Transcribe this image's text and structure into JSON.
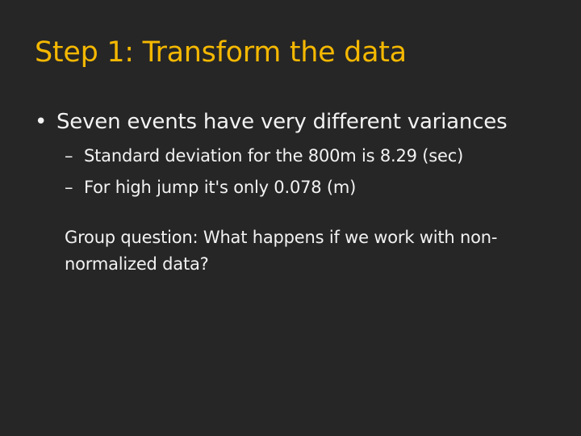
{
  "slide": {
    "title": "Step 1: Transform the data",
    "bullets": [
      {
        "marker": "•",
        "text": "Seven events have very different variances",
        "sub_bullets": [
          {
            "marker": "–",
            "text": "Standard deviation for the 800m is 8.29 (sec)"
          },
          {
            "marker": "–",
            "text": "For high jump it's only 0.078 (m)"
          }
        ]
      }
    ],
    "question": "Group question: What happens if we work with non-normalized data?"
  },
  "colors": {
    "background": "#262626",
    "title": "#f5b800",
    "body_text": "#f2f2f2"
  }
}
